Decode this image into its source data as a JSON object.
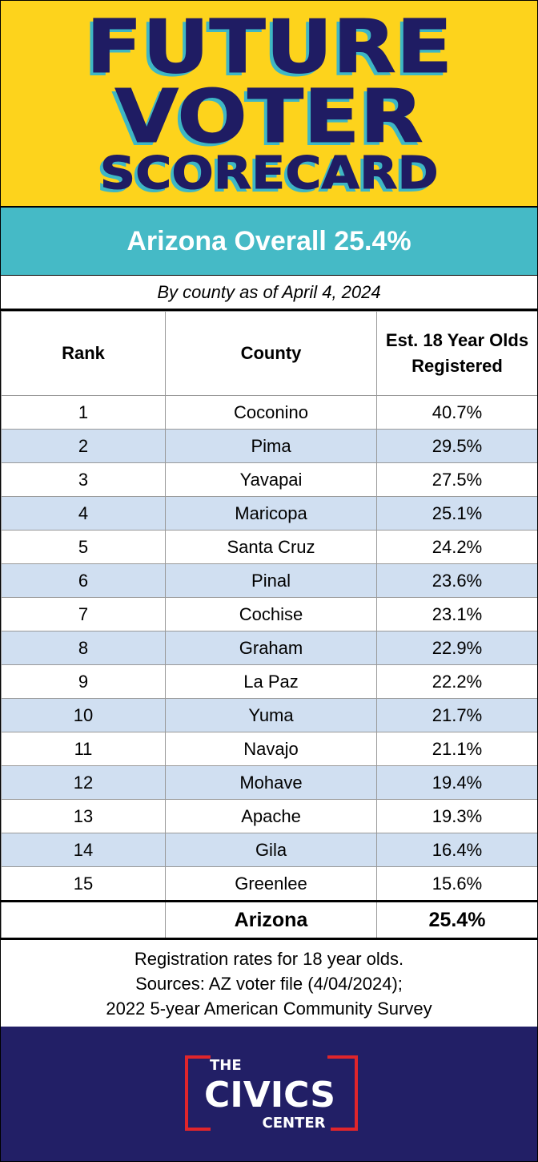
{
  "header": {
    "title_lines": [
      "FUTURE",
      "VOTER",
      "SCORECARD"
    ]
  },
  "banner": "Arizona Overall 25.4%",
  "subtitle": "By county as of April 4, 2024",
  "table": {
    "columns": [
      "Rank",
      "County",
      "Est. 18 Year Olds Registered"
    ],
    "rows": [
      [
        "1",
        "Coconino",
        "40.7%"
      ],
      [
        "2",
        "Pima",
        "29.5%"
      ],
      [
        "3",
        "Yavapai",
        "27.5%"
      ],
      [
        "4",
        "Maricopa",
        "25.1%"
      ],
      [
        "5",
        "Santa Cruz",
        "24.2%"
      ],
      [
        "6",
        "Pinal",
        "23.6%"
      ],
      [
        "7",
        "Cochise",
        "23.1%"
      ],
      [
        "8",
        "Graham",
        "22.9%"
      ],
      [
        "9",
        "La Paz",
        "22.2%"
      ],
      [
        "10",
        "Yuma",
        "21.7%"
      ],
      [
        "11",
        "Navajo",
        "21.1%"
      ],
      [
        "12",
        "Mohave",
        "19.4%"
      ],
      [
        "13",
        "Apache",
        "19.3%"
      ],
      [
        "14",
        "Gila",
        "16.4%"
      ],
      [
        "15",
        "Greenlee",
        "15.6%"
      ]
    ],
    "total": [
      "Arizona",
      "25.4%"
    ]
  },
  "notes": [
    "Registration rates for 18 year olds.",
    "Sources: AZ voter file (4/04/2024);",
    "2022 5-year American Community Survey"
  ],
  "logo": [
    "THE",
    "CIVICS",
    "CENTER"
  ]
}
